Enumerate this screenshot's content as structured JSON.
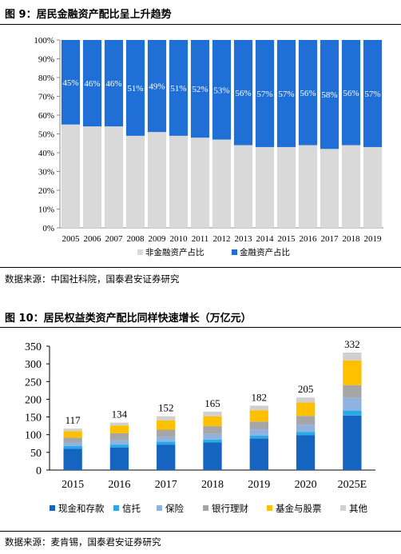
{
  "figure1": {
    "title": "图 9：居民金融资产配比呈上升趋势",
    "source": "数据来源：中国社科院，国泰君安证券研究",
    "chart_data": {
      "type": "bar",
      "stacked": "percent",
      "categories": [
        "2005",
        "2006",
        "2007",
        "2008",
        "2009",
        "2010",
        "2011",
        "2012",
        "2013",
        "2014",
        "2015",
        "2016",
        "2017",
        "2018",
        "2019"
      ],
      "series": [
        {
          "name": "非金融资产占比",
          "color": "#d9d9d9",
          "values": [
            55,
            54,
            54,
            49,
            51,
            49,
            48,
            47,
            44,
            43,
            43,
            44,
            42,
            44,
            43
          ]
        },
        {
          "name": "金融资产占比",
          "color": "#1f6fd6",
          "values": [
            45,
            46,
            46,
            51,
            49,
            51,
            52,
            53,
            56,
            57,
            57,
            56,
            58,
            56,
            57
          ]
        }
      ],
      "data_labels": [
        "45%",
        "46%",
        "46%",
        "51%",
        "49%",
        "51%",
        "52%",
        "53%",
        "56%",
        "57%",
        "57%",
        "56%",
        "58%",
        "56%",
        "57%"
      ],
      "y_ticks": [
        "0%",
        "10%",
        "20%",
        "30%",
        "40%",
        "50%",
        "60%",
        "70%",
        "80%",
        "90%",
        "100%"
      ],
      "ylim": [
        0,
        100
      ],
      "grid": false,
      "legend": "bottom"
    }
  },
  "figure2": {
    "title": "图 10：居民权益类资产配比同样快速增长（万亿元）",
    "source": "数据来源：麦肯锡，国泰君安证券研究",
    "chart_data": {
      "type": "bar",
      "stacked": true,
      "categories": [
        "2015",
        "2016",
        "2017",
        "2018",
        "2019",
        "2020",
        "2025E"
      ],
      "totals": [
        117,
        134,
        152,
        165,
        182,
        205,
        332
      ],
      "series": [
        {
          "name": "现金和存款",
          "color": "#1565c0",
          "values": [
            60,
            64,
            72,
            78,
            89,
            99,
            154
          ]
        },
        {
          "name": "信托",
          "color": "#29a9e8",
          "values": [
            8,
            8,
            8,
            8,
            8,
            9,
            14
          ]
        },
        {
          "name": "保险",
          "color": "#8fb2e0",
          "values": [
            10,
            12,
            14,
            16,
            18,
            20,
            36
          ]
        },
        {
          "name": "银行理财",
          "color": "#a6a6a6",
          "values": [
            14,
            20,
            20,
            22,
            22,
            25,
            36
          ]
        },
        {
          "name": "基金与股票",
          "color": "#ffc000",
          "values": [
            18,
            22,
            26,
            28,
            32,
            38,
            70
          ]
        },
        {
          "name": "其他",
          "color": "#d0d0d0",
          "values": [
            7,
            8,
            12,
            13,
            13,
            14,
            22
          ]
        }
      ],
      "y_ticks": [
        "0",
        "50",
        "100",
        "150",
        "200",
        "250",
        "300",
        "350"
      ],
      "ylim": [
        0,
        350
      ],
      "grid": false,
      "legend": "bottom"
    }
  }
}
